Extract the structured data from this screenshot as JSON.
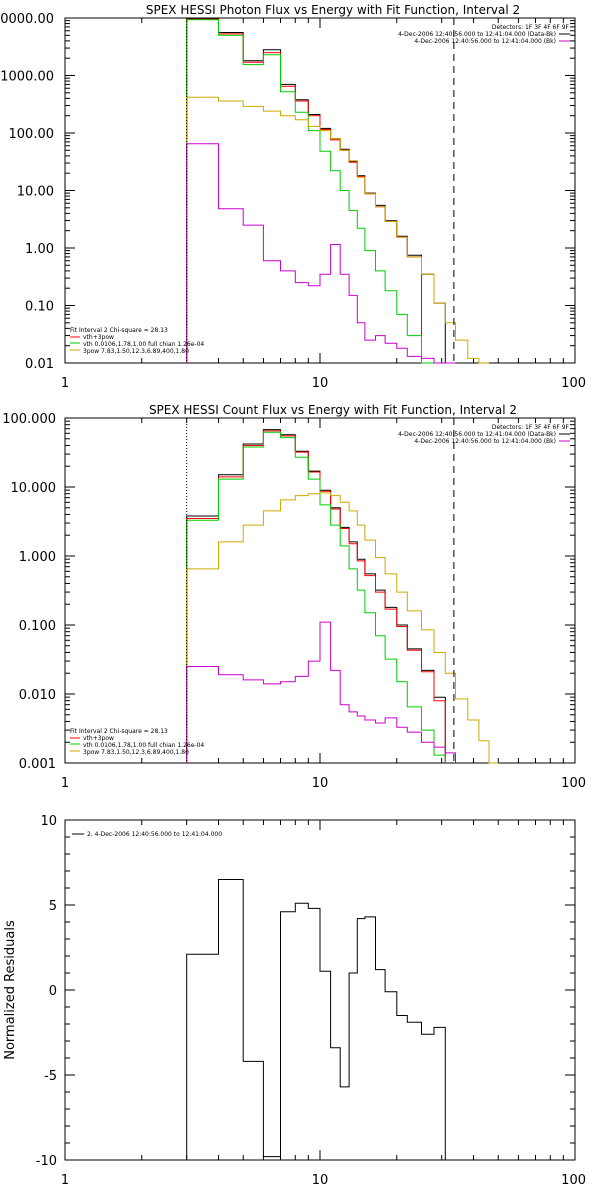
{
  "chart_data": [
    {
      "type": "line",
      "title": "SPEX HESSI Photon Flux vs Energy with Fit Function, Interval 2",
      "xlabel": "",
      "ylabel": "",
      "xscale": "log",
      "yscale": "log",
      "xlim": [
        1,
        100
      ],
      "ylim": [
        0.01,
        10000
      ],
      "x_tick_labels": [
        "1",
        "10",
        "100"
      ],
      "x_tick_values": [
        1,
        10,
        100
      ],
      "y_tick_labels": [
        "0.01",
        "0.10",
        "1.00",
        "10.00",
        "100.00",
        "1000.00",
        "10000.00"
      ],
      "y_tick_values": [
        0.01,
        0.1,
        1,
        10,
        100,
        1000,
        10000
      ],
      "info_lines": [
        {
          "text": "Detectors: 1F 3F 4F 6F 9F",
          "color": "#000000"
        },
        {
          "text": "4-Dec-2006 12:40:56.000 to 12:41:04.000 (Data-Bk)",
          "color": "#000000"
        },
        {
          "text": "4-Dec-2006 12:40:56.000 to 12:41:04.000 (Bk)",
          "color": "#cc00cc"
        }
      ],
      "fit_lines": [
        {
          "text": "Fit Interval 2   Chi-square = 28.13",
          "color": "#000000"
        },
        {
          "text": "vth+3pow",
          "color": "#ff0000"
        },
        {
          "text": "vth 0.0106,1.78,1.00  full chian 1.26e-04",
          "color": "#00cc00"
        },
        {
          "text": "3pow 7.83,1.50,12.3,6.89,400,1.80",
          "color": "#ccaa00"
        }
      ],
      "vlines": [
        {
          "x": 3.0,
          "style": "dotted",
          "color": "#000000"
        },
        {
          "x": 33.5,
          "style": "dashed",
          "color": "#000000"
        }
      ],
      "bin_edges": [
        3,
        4,
        5,
        6,
        7,
        8,
        9,
        10,
        11,
        12,
        13,
        14,
        15,
        16.5,
        18,
        20,
        22,
        25,
        28,
        31,
        34,
        38,
        42,
        46
      ],
      "series": [
        {
          "role": "data",
          "color": "#000000",
          "values": [
            9800,
            5600,
            1800,
            2800,
            700,
            380,
            210,
            120,
            80,
            52,
            32,
            18,
            9,
            5.5,
            3,
            1.6,
            0.75,
            0.35,
            0.11
          ]
        },
        {
          "role": "total fit",
          "color": "#ff0000",
          "values": [
            9500,
            5300,
            1700,
            2500,
            650,
            360,
            200,
            115,
            76,
            50,
            31,
            17.5,
            8.8,
            5.2,
            2.9,
            1.55,
            0.7
          ]
        },
        {
          "role": "thermal",
          "color": "#00cc00",
          "values": [
            9300,
            5000,
            1550,
            2300,
            520,
            230,
            110,
            48,
            22,
            10,
            4.5,
            2.2,
            0.9,
            0.4,
            0.18,
            0.07,
            0.03,
            0.008
          ]
        },
        {
          "role": "power law",
          "color": "#ccaa00",
          "values": [
            420,
            360,
            290,
            240,
            200,
            170,
            130,
            110,
            80,
            50,
            33,
            17,
            8.8,
            5.2,
            2.9,
            1.55,
            0.7,
            0.35,
            0.11,
            0.05,
            0.025,
            0.012,
            0.006
          ]
        },
        {
          "role": "background",
          "color": "#cc00cc",
          "values": [
            65,
            4.8,
            2.5,
            0.6,
            0.4,
            0.25,
            0.22,
            0.35,
            1.15,
            0.35,
            0.15,
            0.05,
            0.025,
            0.03,
            0.022,
            0.018,
            0.013,
            0.012,
            0.008,
            0.006
          ]
        }
      ]
    },
    {
      "type": "line",
      "title": "SPEX HESSI Count Flux vs Energy with Fit Function, Interval 2",
      "xlabel": "",
      "ylabel": "",
      "xscale": "log",
      "yscale": "log",
      "xlim": [
        1,
        100
      ],
      "ylim": [
        0.001,
        100
      ],
      "x_tick_labels": [
        "1",
        "10",
        "100"
      ],
      "x_tick_values": [
        1,
        10,
        100
      ],
      "y_tick_labels": [
        "0.001",
        "0.010",
        "0.100",
        "1.000",
        "10.000",
        "100.000"
      ],
      "y_tick_values": [
        0.001,
        0.01,
        0.1,
        1,
        10,
        100
      ],
      "info_lines": [
        {
          "text": "Detectors: 1F 3F 4F 6F 9F",
          "color": "#000000"
        },
        {
          "text": "4-Dec-2006 12:40:56.000 to 12:41:04.000 (Data-Bk)",
          "color": "#000000"
        },
        {
          "text": "4-Dec-2006 12:40:56.000 to 12:41:04.000 (Bk)",
          "color": "#cc00cc"
        }
      ],
      "fit_lines": [
        {
          "text": "Fit Interval 2   Chi-square = 28.13",
          "color": "#000000"
        },
        {
          "text": "vth+3pow",
          "color": "#ff0000"
        },
        {
          "text": "vth 0.0106,1.78,1.00  full chian 1.26e-04",
          "color": "#00cc00"
        },
        {
          "text": "3pow 7.83,1.50,12.3,6.89,400,1.80",
          "color": "#ccaa00"
        }
      ],
      "vlines": [
        {
          "x": 3.0,
          "style": "dotted",
          "color": "#000000"
        },
        {
          "x": 33.5,
          "style": "dashed",
          "color": "#000000"
        }
      ],
      "bin_edges": [
        3,
        4,
        5,
        6,
        7,
        8,
        9,
        10,
        11,
        12,
        13,
        14,
        15,
        16.5,
        18,
        20,
        22,
        25,
        28,
        31,
        34,
        38,
        42,
        46,
        50
      ],
      "series": [
        {
          "role": "data",
          "color": "#000000",
          "values": [
            3.8,
            15,
            42,
            68,
            57,
            33,
            17,
            9,
            5,
            2.6,
            1.6,
            0.9,
            0.55,
            0.32,
            0.18,
            0.1,
            0.045,
            0.022,
            0.009
          ]
        },
        {
          "role": "total fit",
          "color": "#ff0000",
          "values": [
            3.5,
            14,
            40,
            65,
            55,
            32,
            16.5,
            8.7,
            4.8,
            2.5,
            1.5,
            0.85,
            0.52,
            0.3,
            0.17,
            0.095,
            0.043,
            0.021,
            0.008
          ]
        },
        {
          "role": "thermal",
          "color": "#00cc00",
          "values": [
            3.3,
            13,
            38,
            62,
            52,
            27,
            13,
            5.5,
            2.8,
            1.4,
            0.65,
            0.32,
            0.15,
            0.07,
            0.032,
            0.015,
            0.0065,
            0.003,
            0.0013
          ]
        },
        {
          "role": "power law",
          "color": "#ccaa00",
          "values": [
            0.65,
            1.6,
            2.8,
            4.5,
            6.5,
            7.5,
            8,
            8.2,
            7.5,
            6,
            4.5,
            2.8,
            1.7,
            0.95,
            0.55,
            0.3,
            0.16,
            0.085,
            0.04,
            0.02,
            0.0085,
            0.0042,
            0.0021,
            0.001
          ]
        },
        {
          "role": "background",
          "color": "#cc00cc",
          "values": [
            0.025,
            0.019,
            0.016,
            0.014,
            0.015,
            0.018,
            0.03,
            0.11,
            0.022,
            0.007,
            0.0055,
            0.0048,
            0.0042,
            0.0038,
            0.0045,
            0.0033,
            0.0028,
            0.002,
            0.0017,
            0.0014
          ]
        }
      ]
    },
    {
      "type": "line",
      "title": "",
      "xlabel": "",
      "ylabel": "Normalized Residuals",
      "xscale": "log",
      "yscale": "linear",
      "xlim": [
        1,
        100
      ],
      "ylim": [
        -10,
        10
      ],
      "x_tick_labels": [
        "1",
        "10",
        "100"
      ],
      "x_tick_values": [
        1,
        10,
        100
      ],
      "y_tick_labels": [
        "-10",
        "-5",
        "0",
        "5",
        "10"
      ],
      "y_tick_values": [
        -10,
        -5,
        0,
        5,
        10
      ],
      "legend": [
        {
          "text": "2.  4-Dec-2006 12:40:56.000 to 12:41:04.000",
          "color": "#000000"
        }
      ],
      "bin_edges": [
        3,
        4,
        5,
        6,
        7,
        8,
        9,
        10,
        11,
        12,
        13,
        14,
        15,
        16.5,
        18,
        20,
        22,
        25,
        28,
        31,
        34
      ],
      "series": [
        {
          "role": "residuals",
          "color": "#000000",
          "values": [
            2.1,
            6.5,
            -4.2,
            -9.8,
            4.6,
            5.1,
            4.8,
            1.1,
            -3.4,
            -5.7,
            1.0,
            4.2,
            4.3,
            1.2,
            -0.1,
            -1.5,
            -1.9,
            -2.6,
            -2.2
          ]
        }
      ]
    }
  ]
}
